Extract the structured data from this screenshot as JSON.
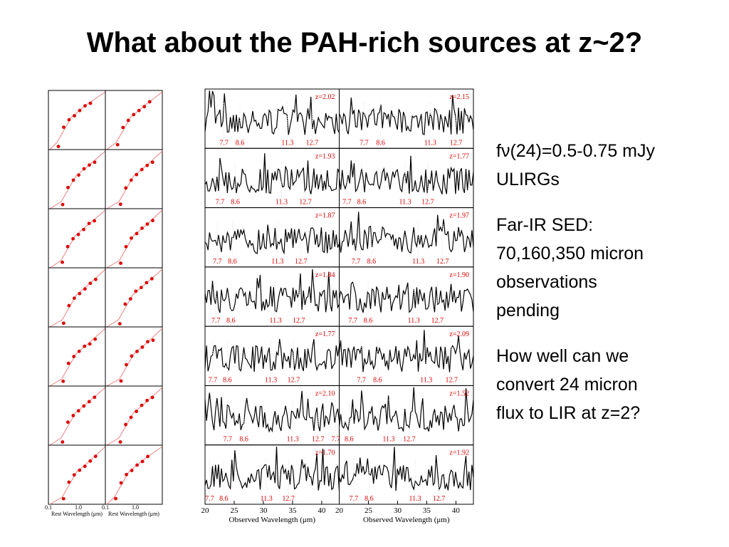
{
  "title": "What about the PAH-rich sources at z~2?",
  "notes": [
    [
      "fν(24)=0.5-0.75 mJy",
      "ULIRGs"
    ],
    [
      "Far-IR SED:",
      "70,160,350 micron",
      "observations",
      "pending"
    ],
    [
      "How well can we",
      "convert 24 micron",
      "flux to LIR at z=2?"
    ]
  ],
  "sed_figure": {
    "columns": [
      {
        "x_tick_labels": [
          "0.1",
          "1.0"
        ],
        "x_label": "Rest Wavelength (μm)"
      },
      {
        "x_tick_labels": [
          "0.1",
          "1.0"
        ],
        "x_label": "Rest Wavelength (μm)"
      }
    ]
  },
  "spectra_figure": {
    "features": [
      7.7,
      8.6,
      11.3,
      12.7
    ],
    "xlim": [
      20,
      43
    ],
    "columns": [
      {
        "xticks": [
          20,
          25,
          30,
          35,
          40
        ],
        "x_label": "Observed Wavelength (μm)",
        "redshifts": [
          {
            "value": 2.02,
            "label": "z=2.02"
          },
          {
            "value": 1.93,
            "label": "z=1.93"
          },
          {
            "value": 1.87,
            "label": "z=1.87"
          },
          {
            "value": 1.84,
            "label": "z=1.84"
          },
          {
            "value": 1.77,
            "label": "z=1.77"
          },
          {
            "value": 2.1,
            "label": "z=2.10"
          },
          {
            "value": 1.7,
            "label": "z=1.70"
          }
        ]
      },
      {
        "xticks": [
          20,
          25,
          30,
          35,
          40
        ],
        "x_label": "Observed Wavelength (μm)",
        "redshifts": [
          {
            "value": 2.15,
            "label": "z=2.15"
          },
          {
            "value": 1.77,
            "label": "z=1.77"
          },
          {
            "value": 1.97,
            "label": "z=1.97"
          },
          {
            "value": 1.9,
            "label": "z=1.90"
          },
          {
            "value": 2.09,
            "label": "z=2.09"
          },
          {
            "value": 1.52,
            "label": "z=1.52"
          },
          {
            "value": 1.92,
            "label": "z=1.92"
          }
        ]
      }
    ]
  }
}
